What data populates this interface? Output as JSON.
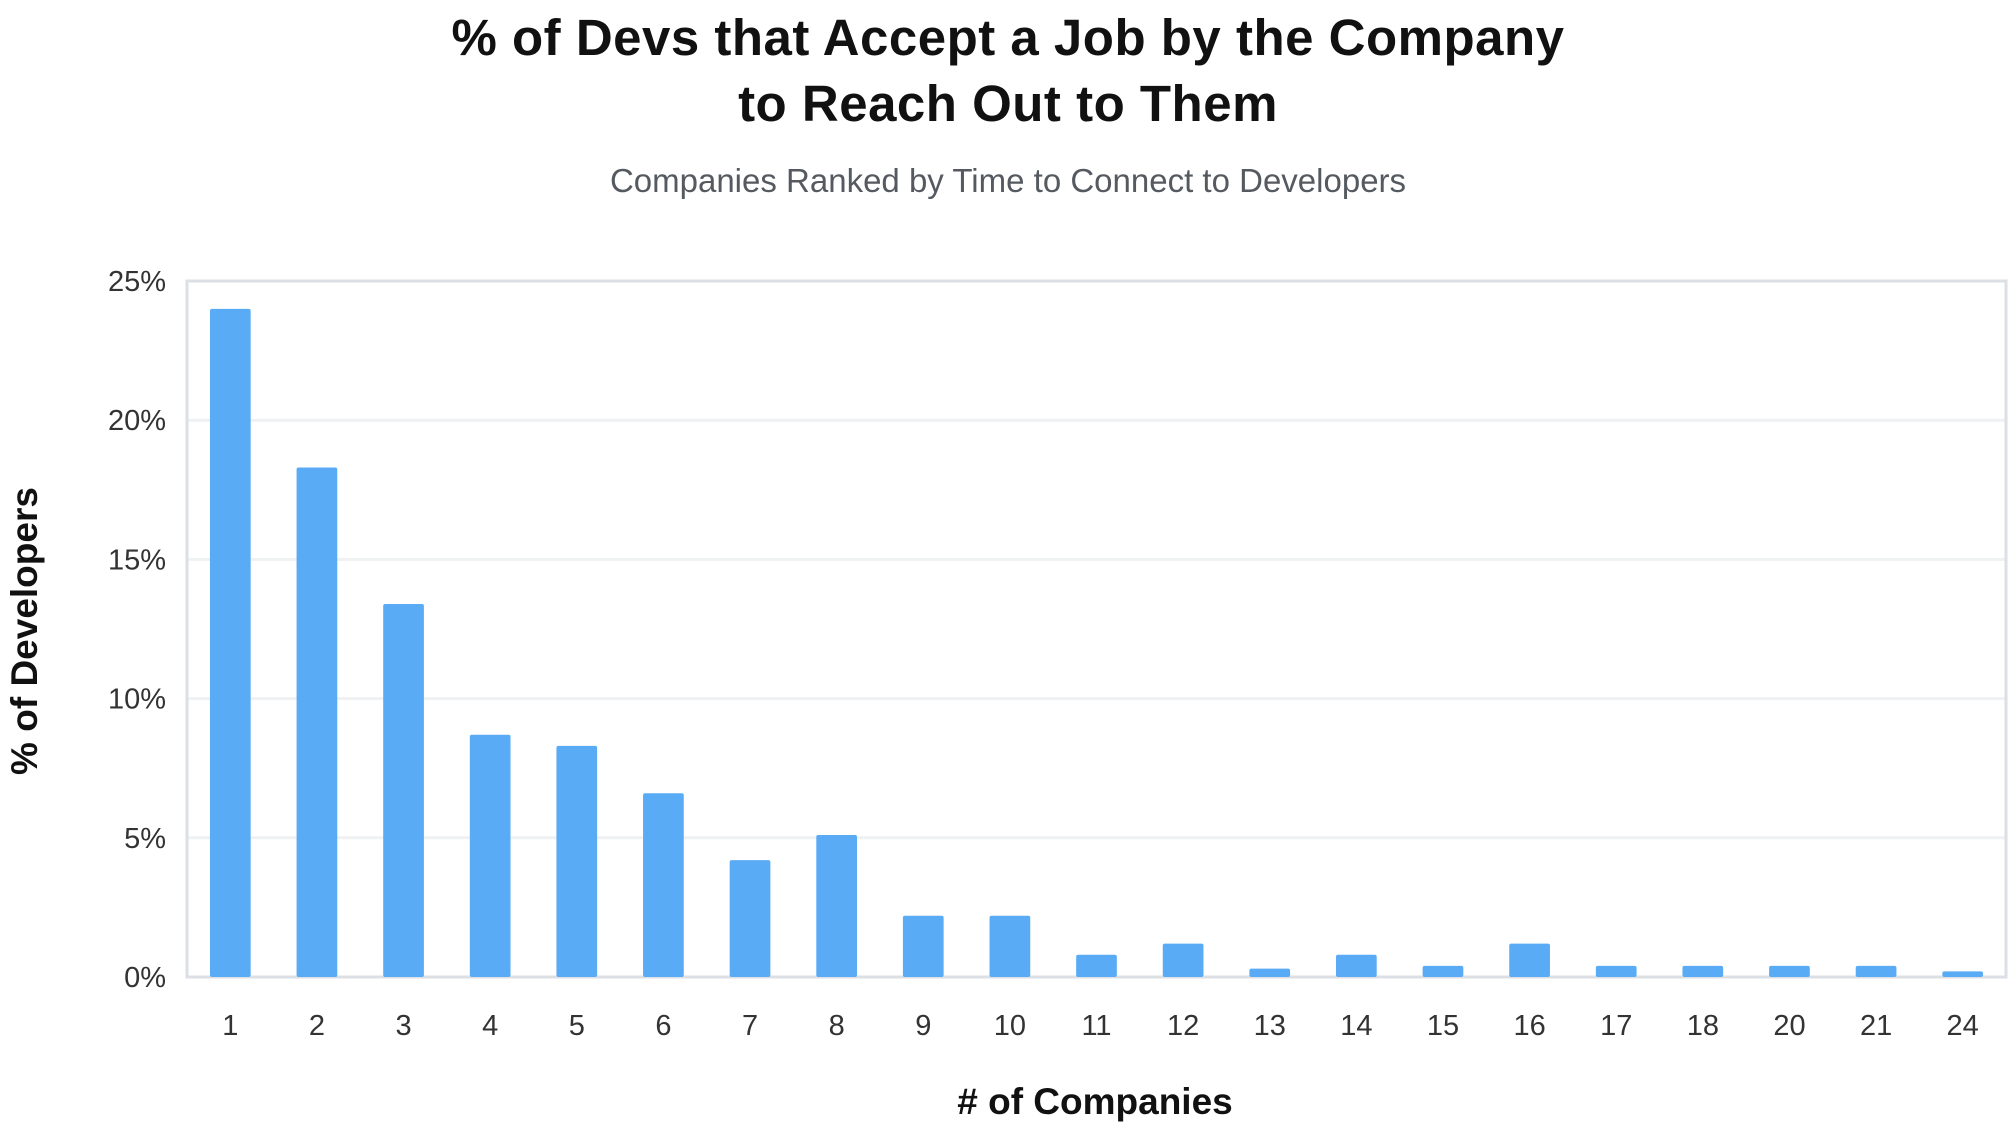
{
  "chart_data": {
    "type": "bar",
    "title_lines": [
      "% of Devs that Accept a Job by the Company",
      "to Reach Out to Them"
    ],
    "subtitle": "Companies Ranked by Time to Connect to Developers",
    "xlabel": "# of Companies",
    "ylabel": "% of Developers",
    "categories": [
      "1",
      "2",
      "3",
      "4",
      "5",
      "6",
      "7",
      "8",
      "9",
      "10",
      "11",
      "12",
      "13",
      "14",
      "15",
      "16",
      "17",
      "18",
      "20",
      "21",
      "24"
    ],
    "values": [
      24.0,
      18.3,
      13.4,
      8.7,
      8.3,
      6.6,
      4.2,
      5.1,
      2.2,
      2.2,
      0.8,
      1.2,
      0.3,
      0.8,
      0.4,
      1.2,
      0.4,
      0.4,
      0.4,
      0.4,
      0.2
    ],
    "ylim": [
      0,
      25
    ],
    "yticks": [
      0,
      5,
      10,
      15,
      20,
      25
    ],
    "ytick_labels": [
      "0%",
      "5%",
      "10%",
      "15%",
      "20%",
      "25%"
    ],
    "grid": true,
    "bar_color": "#5aabf5",
    "gridline_color": "#f0f1f3",
    "axis_color": "#dcdfe4"
  }
}
